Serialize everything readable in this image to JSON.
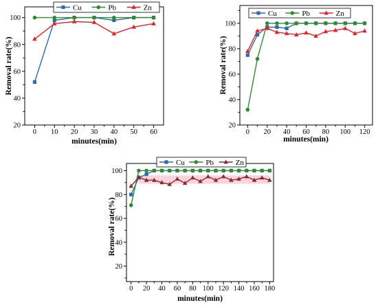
{
  "chart_data": [
    {
      "type": "line",
      "x": [
        0,
        10,
        20,
        30,
        40,
        50,
        60
      ],
      "xlabel": "minutes(min)",
      "ylabel": "Removal rate(%)",
      "xlim": [
        -5,
        65
      ],
      "ylim": [
        20,
        108
      ],
      "xticks": [
        0,
        10,
        20,
        30,
        40,
        50,
        60
      ],
      "yticks": [
        20,
        40,
        60,
        80,
        100
      ],
      "grid": false,
      "legend": "top-center",
      "series": [
        {
          "name": "Cu",
          "color": "#2b6cb0",
          "marker": "square",
          "values": [
            52,
            98,
            100,
            100,
            98,
            100,
            100
          ]
        },
        {
          "name": "Pb",
          "color": "#2e8b2e",
          "marker": "circle",
          "values": [
            100,
            100,
            100,
            100,
            100,
            100,
            100
          ]
        },
        {
          "name": "Zn",
          "color": "#e8202a",
          "marker": "triangle",
          "values": [
            84,
            95.5,
            97,
            96.5,
            88,
            93,
            95.5
          ]
        }
      ]
    },
    {
      "type": "line",
      "x": [
        0,
        10,
        20,
        30,
        40,
        50,
        60,
        70,
        80,
        90,
        100,
        110,
        120
      ],
      "xlabel": "minutes(min)",
      "ylabel": "Removal rate(%)",
      "xlim": [
        -8,
        128
      ],
      "ylim": [
        20,
        114
      ],
      "xticks": [
        0,
        20,
        40,
        60,
        80,
        100,
        120
      ],
      "yticks": [
        20,
        40,
        60,
        80,
        100
      ],
      "grid": false,
      "legend": "top-left",
      "series": [
        {
          "name": "Cu",
          "color": "#2b6cb0",
          "marker": "square",
          "values": [
            75,
            91,
            97,
            97,
            96,
            100,
            100,
            100,
            100,
            100,
            100,
            100,
            100
          ]
        },
        {
          "name": "Pb",
          "color": "#2e8b2e",
          "marker": "circle",
          "values": [
            32,
            72,
            100,
            100,
            100,
            100,
            100,
            100,
            100,
            100,
            100,
            100,
            100
          ]
        },
        {
          "name": "Zn",
          "color": "#e8202a",
          "marker": "triangle",
          "values": [
            78,
            94,
            96,
            93,
            92,
            91,
            92.5,
            90,
            93.5,
            94.5,
            96,
            92,
            94
          ]
        }
      ]
    },
    {
      "type": "line",
      "x": [
        0,
        10,
        20,
        30,
        40,
        50,
        60,
        70,
        80,
        90,
        100,
        110,
        120,
        130,
        140,
        150,
        160,
        170,
        180
      ],
      "xlabel": "minutes(min)",
      "ylabel": "Removal rate(%)",
      "xlim": [
        -6,
        185
      ],
      "ylim": [
        7,
        106
      ],
      "xticks": [
        0,
        20,
        40,
        60,
        80,
        100,
        120,
        140,
        160,
        180
      ],
      "yticks": [
        20,
        40,
        60,
        80,
        100
      ],
      "grid": false,
      "legend": "top-center",
      "series": [
        {
          "name": "Cu",
          "color": "#2b6cb0",
          "marker": "square",
          "values": [
            80,
            94,
            97,
            100,
            100,
            100,
            100,
            100,
            100,
            100,
            100,
            100,
            100,
            100,
            100,
            100,
            100,
            100,
            100
          ]
        },
        {
          "name": "Pb",
          "color": "#2e8b2e",
          "marker": "circle",
          "values": [
            71,
            100,
            100,
            100,
            100,
            100,
            100,
            100,
            100,
            100,
            100,
            100,
            100,
            100,
            100,
            100,
            100,
            100,
            100
          ]
        },
        {
          "name": "Zn",
          "color": "#8b2c2c",
          "marker": "triangle",
          "values": [
            87,
            94.5,
            92,
            92,
            90,
            88.5,
            93,
            89.5,
            94,
            91,
            95,
            92,
            95,
            92,
            93,
            95,
            92,
            94,
            92
          ],
          "band": {
            "x": [
              10,
              180
            ],
            "y": [
              89,
              96
            ],
            "color": "#f7cad8"
          }
        }
      ]
    }
  ]
}
